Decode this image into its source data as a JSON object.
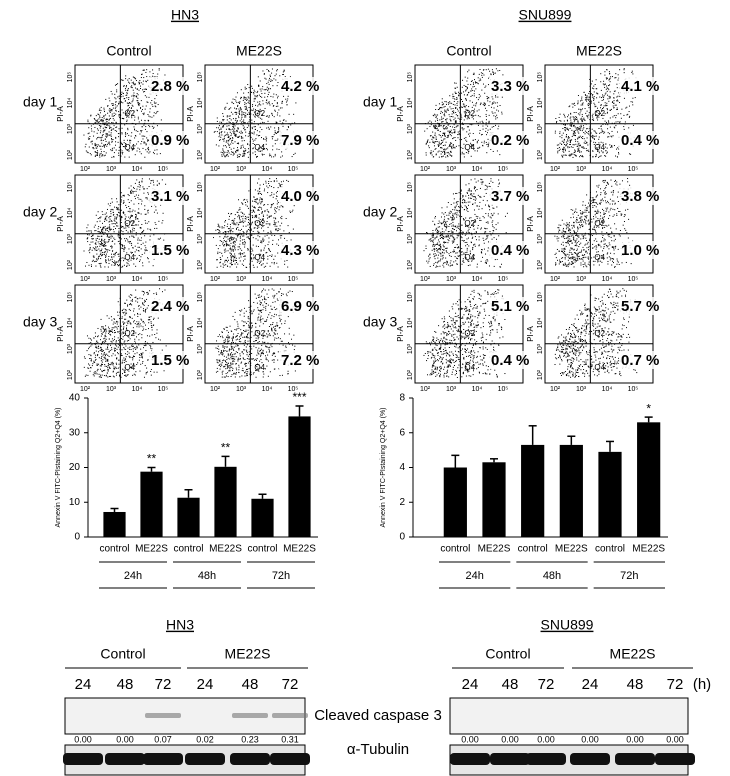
{
  "flow": [
    {
      "title": "HN3",
      "columns": [
        "Control",
        "ME22S"
      ],
      "rows": [
        "day 1",
        "day 2",
        "day 3"
      ],
      "upper": [
        [
          "2.8 %",
          "4.2 %"
        ],
        [
          "3.1 %",
          "4.0 %"
        ],
        [
          "2.4 %",
          "6.9 %"
        ]
      ],
      "lower": [
        [
          "0.9 %",
          "7.9 %"
        ],
        [
          "1.5 %",
          "4.3 %"
        ],
        [
          "1.5 %",
          "7.2 %"
        ]
      ]
    },
    {
      "title": "SNU899",
      "columns": [
        "Control",
        "ME22S"
      ],
      "rows": [
        "day 1",
        "day 2",
        "day 3"
      ],
      "upper": [
        [
          "3.3 %",
          "4.1 %"
        ],
        [
          "3.7 %",
          "3.8 %"
        ],
        [
          "5.1 %",
          "5.7 %"
        ]
      ],
      "lower": [
        [
          "0.2 %",
          "0.4 %"
        ],
        [
          "0.4 %",
          "1.0 %"
        ],
        [
          "0.4 %",
          "0.7 %"
        ]
      ]
    }
  ],
  "flow_axes": {
    "ylabel": "PI-A",
    "ticks": [
      "10²",
      "10³",
      "10⁴",
      "10⁵"
    ],
    "quadrants": [
      "Q2",
      "Q4"
    ]
  },
  "chart_data": [
    {
      "type": "bar",
      "ylabel": "Annexin V FITC-PIstaining Q2+Q4 (%)",
      "categories": [
        "control",
        "ME22S",
        "control",
        "ME22S",
        "control",
        "ME22S"
      ],
      "groups": [
        "24h",
        "48h",
        "72h"
      ],
      "values": [
        7.2,
        18.8,
        11.3,
        20.2,
        11.0,
        34.7
      ],
      "errors": [
        1.0,
        1.2,
        2.3,
        3.0,
        1.3,
        3.0
      ],
      "significance": [
        null,
        "**",
        null,
        "**",
        null,
        "***"
      ],
      "color": "#000000",
      "ylim": [
        0,
        40
      ],
      "yticks": [
        0,
        10,
        20,
        30,
        40
      ]
    },
    {
      "type": "bar",
      "ylabel": "Annexin V FITC-PIstaining Q2+Q4 (%)",
      "categories": [
        "control",
        "ME22S",
        "control",
        "ME22S",
        "control",
        "ME22S"
      ],
      "groups": [
        "24h",
        "48h",
        "72h"
      ],
      "values": [
        4.0,
        4.3,
        5.3,
        5.3,
        4.9,
        6.6
      ],
      "errors": [
        0.7,
        0.2,
        1.1,
        0.5,
        0.6,
        0.3
      ],
      "significance": [
        null,
        null,
        null,
        null,
        null,
        "*"
      ],
      "color": "#000000",
      "ylim": [
        0,
        8
      ],
      "yticks": [
        0,
        2,
        4,
        6,
        8
      ]
    }
  ],
  "western": [
    {
      "title": "HN3",
      "groups": [
        "Control",
        "ME22S"
      ],
      "times": [
        "24",
        "48",
        "72",
        "24",
        "48",
        "72"
      ],
      "quantities": [
        "0.00",
        "0.00",
        "0.07",
        "0.02",
        "0.23",
        "0.31"
      ]
    },
    {
      "title": "SNU899",
      "groups": [
        "Control",
        "ME22S"
      ],
      "times": [
        "24",
        "48",
        "72",
        "24",
        "48",
        "72"
      ],
      "unit": "(h)",
      "quantities": [
        "0.00",
        "0.00",
        "0.00",
        "0.00",
        "0.00",
        "0.00"
      ]
    }
  ],
  "bands": [
    "Cleaved caspase 3",
    "α-Tubulin"
  ]
}
